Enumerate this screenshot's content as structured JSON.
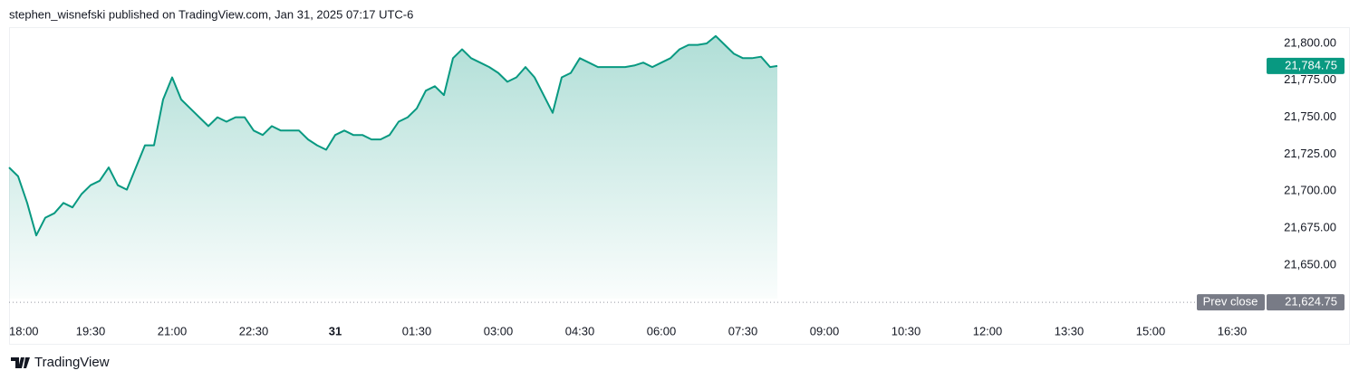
{
  "header": "stephen_wisnefski published on TradingView.com, Jan 31, 2025 07:17 UTC-6",
  "footer": "TradingView",
  "chart_data": {
    "type": "area",
    "color": "#089981",
    "x": [
      "18:00",
      "18:10",
      "18:20",
      "18:30",
      "18:40",
      "18:50",
      "19:00",
      "19:10",
      "19:20",
      "19:30",
      "19:40",
      "19:50",
      "20:00",
      "20:10",
      "20:20",
      "20:30",
      "20:40",
      "20:50",
      "21:00",
      "21:10",
      "21:20",
      "21:30",
      "21:40",
      "21:50",
      "22:00",
      "22:10",
      "22:20",
      "22:30",
      "22:40",
      "22:50",
      "23:00",
      "23:10",
      "23:20",
      "23:30",
      "23:40",
      "23:50",
      "00:00",
      "00:10",
      "00:20",
      "00:30",
      "00:40",
      "00:50",
      "01:00",
      "01:10",
      "01:20",
      "01:30",
      "01:40",
      "01:50",
      "02:00",
      "02:10",
      "02:20",
      "02:30",
      "02:40",
      "02:50",
      "03:00",
      "03:10",
      "03:20",
      "03:30",
      "03:40",
      "03:50",
      "04:00",
      "04:10",
      "04:20",
      "04:30",
      "04:40",
      "04:50",
      "05:00",
      "05:10",
      "05:20",
      "05:30",
      "05:40",
      "05:50",
      "06:00",
      "06:10",
      "06:20",
      "06:30",
      "06:40",
      "06:50",
      "07:00",
      "07:10",
      "07:20",
      "07:30",
      "07:40",
      "07:50",
      "08:00",
      "08:08"
    ],
    "values": [
      21716,
      21710,
      21692,
      21670,
      21682,
      21685,
      21692,
      21689,
      21698,
      21704,
      21707,
      21716,
      21704,
      21701,
      21716,
      21731,
      21731,
      21762,
      21777,
      21762,
      21756,
      21750,
      21744,
      21750,
      21747,
      21750,
      21750,
      21741,
      21738,
      21744,
      21741,
      21741,
      21741,
      21735,
      21731,
      21728,
      21738,
      21741,
      21738,
      21738,
      21735,
      21735,
      21738,
      21747,
      21750,
      21756,
      21768,
      21771,
      21765,
      21790,
      21796,
      21790,
      21787,
      21784,
      21780,
      21774,
      21777,
      21784,
      21777,
      21765,
      21753,
      21777,
      21780,
      21790,
      21787,
      21784,
      21784,
      21784,
      21784,
      21785,
      21787,
      21784,
      21787,
      21790,
      21796,
      21799,
      21799,
      21800,
      21805,
      21799,
      21793,
      21790,
      21790,
      21791,
      21784,
      21784.75
    ],
    "last_value_label": "21,784.75",
    "prev_close": {
      "name": "Prev close",
      "value": 21624.75,
      "label": "21,624.75"
    },
    "xlim": [
      "18:00",
      "17:05"
    ],
    "xticks": [
      {
        "value": "18:00",
        "label": "18:00"
      },
      {
        "value": "19:30",
        "label": "19:30"
      },
      {
        "value": "21:00",
        "label": "21:00"
      },
      {
        "value": "22:30",
        "label": "22:30"
      },
      {
        "value": "00:00",
        "label": "31"
      },
      {
        "value": "01:30",
        "label": "01:30"
      },
      {
        "value": "03:00",
        "label": "03:00"
      },
      {
        "value": "04:30",
        "label": "04:30"
      },
      {
        "value": "06:00",
        "label": "06:00"
      },
      {
        "value": "07:30",
        "label": "07:30"
      },
      {
        "value": "09:00",
        "label": "09:00"
      },
      {
        "value": "10:30",
        "label": "10:30"
      },
      {
        "value": "12:00",
        "label": "12:00"
      },
      {
        "value": "13:30",
        "label": "13:30"
      },
      {
        "value": "15:00",
        "label": "15:00"
      },
      {
        "value": "16:30",
        "label": "16:30"
      }
    ],
    "ylim": [
      21615,
      21811
    ],
    "yticks": [
      {
        "value": 21650,
        "label": "21,650.00"
      },
      {
        "value": 21675,
        "label": "21,675.00"
      },
      {
        "value": 21700,
        "label": "21,700.00"
      },
      {
        "value": 21725,
        "label": "21,725.00"
      },
      {
        "value": 21750,
        "label": "21,750.00"
      },
      {
        "value": 21775,
        "label": "21,775.00"
      },
      {
        "value": 21800,
        "label": "21,800.00"
      }
    ]
  }
}
